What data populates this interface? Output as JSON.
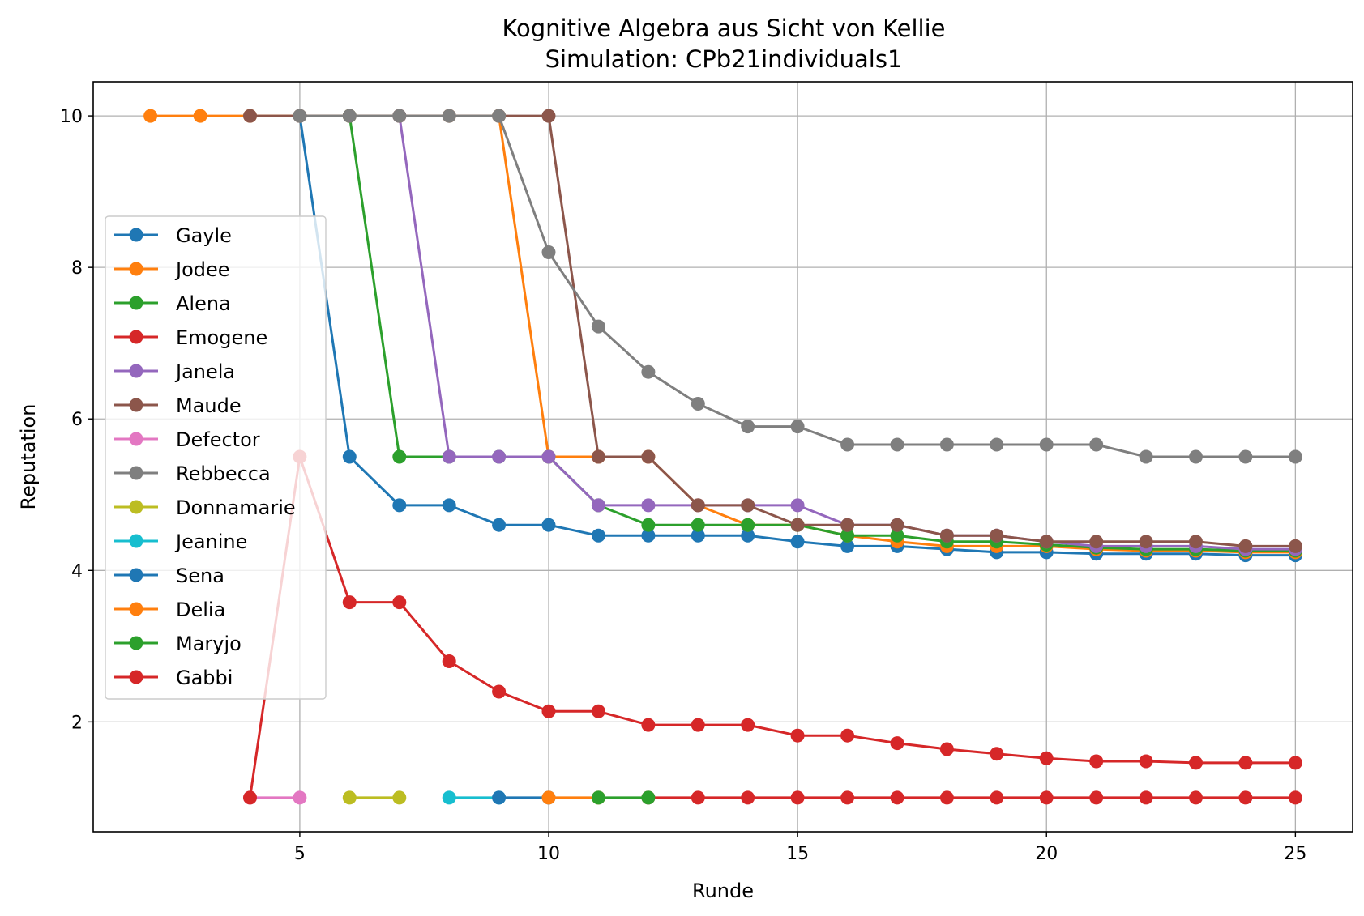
{
  "chart_data": {
    "type": "line",
    "title": "Kognitive Algebra aus Sicht von Kellie",
    "subtitle": "Simulation: CPb21individuals1",
    "xlabel": "Runde",
    "ylabel": "Reputation",
    "xlim": [
      0.85,
      26.15
    ],
    "ylim": [
      0.55,
      10.45
    ],
    "xticks": [
      5,
      10,
      15,
      20,
      25
    ],
    "yticks": [
      2,
      4,
      6,
      8,
      10
    ],
    "grid": true,
    "legend_position": "center-left",
    "series": [
      {
        "name": "Gayle",
        "color": "#1f77b4",
        "points": [
          [
            5,
            10
          ],
          [
            6,
            5.5
          ],
          [
            7,
            4.86
          ],
          [
            8,
            4.86
          ],
          [
            9,
            4.6
          ],
          [
            10,
            4.6
          ],
          [
            11,
            4.46
          ],
          [
            12,
            4.46
          ],
          [
            13,
            4.46
          ],
          [
            14,
            4.46
          ],
          [
            15,
            4.38
          ],
          [
            16,
            4.32
          ],
          [
            17,
            4.32
          ],
          [
            18,
            4.28
          ],
          [
            19,
            4.24
          ],
          [
            20,
            4.24
          ],
          [
            21,
            4.22
          ],
          [
            22,
            4.22
          ],
          [
            23,
            4.22
          ],
          [
            24,
            4.2
          ],
          [
            25,
            4.2
          ]
        ]
      },
      {
        "name": "Jodee",
        "color": "#ff7f0e",
        "points": [
          [
            2,
            10
          ],
          [
            3,
            10
          ],
          [
            4,
            10
          ],
          [
            5,
            10
          ],
          [
            6,
            10
          ],
          [
            7,
            10
          ],
          [
            8,
            10
          ],
          [
            9,
            10
          ],
          [
            10,
            5.5
          ],
          [
            11,
            5.5
          ],
          [
            12,
            5.5
          ],
          [
            13,
            4.86
          ],
          [
            14,
            4.6
          ],
          [
            15,
            4.6
          ],
          [
            16,
            4.46
          ],
          [
            17,
            4.38
          ],
          [
            18,
            4.32
          ],
          [
            19,
            4.32
          ],
          [
            20,
            4.32
          ],
          [
            21,
            4.28
          ],
          [
            22,
            4.26
          ],
          [
            23,
            4.26
          ],
          [
            24,
            4.24
          ],
          [
            25,
            4.24
          ]
        ]
      },
      {
        "name": "Alena",
        "color": "#2ca02c",
        "points": [
          [
            6,
            10
          ],
          [
            7,
            5.5
          ],
          [
            8,
            5.5
          ],
          [
            9,
            5.5
          ],
          [
            10,
            5.5
          ],
          [
            11,
            4.86
          ],
          [
            12,
            4.6
          ],
          [
            13,
            4.6
          ],
          [
            14,
            4.6
          ],
          [
            15,
            4.6
          ],
          [
            16,
            4.46
          ],
          [
            17,
            4.46
          ],
          [
            18,
            4.38
          ],
          [
            19,
            4.38
          ],
          [
            20,
            4.34
          ],
          [
            21,
            4.3
          ],
          [
            22,
            4.28
          ],
          [
            23,
            4.28
          ],
          [
            24,
            4.26
          ],
          [
            25,
            4.26
          ]
        ]
      },
      {
        "name": "Emogene",
        "color": "#d62728",
        "points": [
          [
            12,
            1
          ],
          [
            13,
            1
          ],
          [
            14,
            1
          ],
          [
            15,
            1
          ],
          [
            16,
            1
          ],
          [
            17,
            1
          ],
          [
            18,
            1
          ],
          [
            19,
            1
          ],
          [
            20,
            1
          ],
          [
            21,
            1
          ],
          [
            22,
            1
          ],
          [
            23,
            1
          ],
          [
            24,
            1
          ],
          [
            25,
            1
          ]
        ]
      },
      {
        "name": "Janela",
        "color": "#9467bd",
        "points": [
          [
            7,
            10
          ],
          [
            8,
            5.5
          ],
          [
            9,
            5.5
          ],
          [
            10,
            5.5
          ],
          [
            11,
            4.86
          ],
          [
            12,
            4.86
          ],
          [
            13,
            4.86
          ],
          [
            14,
            4.86
          ],
          [
            15,
            4.86
          ],
          [
            16,
            4.6
          ],
          [
            17,
            4.6
          ],
          [
            18,
            4.46
          ],
          [
            19,
            4.46
          ],
          [
            20,
            4.38
          ],
          [
            21,
            4.32
          ],
          [
            22,
            4.32
          ],
          [
            23,
            4.32
          ],
          [
            24,
            4.28
          ],
          [
            25,
            4.28
          ]
        ]
      },
      {
        "name": "Maude",
        "color": "#8c564b",
        "points": [
          [
            4,
            10
          ],
          [
            5,
            10
          ],
          [
            6,
            10
          ],
          [
            7,
            10
          ],
          [
            8,
            10
          ],
          [
            9,
            10
          ],
          [
            10,
            10
          ],
          [
            11,
            5.5
          ],
          [
            12,
            5.5
          ],
          [
            13,
            4.86
          ],
          [
            14,
            4.86
          ],
          [
            15,
            4.6
          ],
          [
            16,
            4.6
          ],
          [
            17,
            4.6
          ],
          [
            18,
            4.46
          ],
          [
            19,
            4.46
          ],
          [
            20,
            4.38
          ],
          [
            21,
            4.38
          ],
          [
            22,
            4.38
          ],
          [
            23,
            4.38
          ],
          [
            24,
            4.32
          ],
          [
            25,
            4.32
          ]
        ]
      },
      {
        "name": "Defector",
        "color": "#e377c2",
        "points": [
          [
            4,
            1
          ],
          [
            5,
            1
          ]
        ]
      },
      {
        "name": "Rebbecca",
        "color": "#7f7f7f",
        "points": [
          [
            5,
            10
          ],
          [
            6,
            10
          ],
          [
            7,
            10
          ],
          [
            8,
            10
          ],
          [
            9,
            10
          ],
          [
            10,
            8.2
          ],
          [
            11,
            7.22
          ],
          [
            12,
            6.62
          ],
          [
            13,
            6.2
          ],
          [
            14,
            5.9
          ],
          [
            15,
            5.9
          ],
          [
            16,
            5.66
          ],
          [
            17,
            5.66
          ],
          [
            18,
            5.66
          ],
          [
            19,
            5.66
          ],
          [
            20,
            5.66
          ],
          [
            21,
            5.66
          ],
          [
            22,
            5.5
          ],
          [
            23,
            5.5
          ],
          [
            24,
            5.5
          ],
          [
            25,
            5.5
          ]
        ]
      },
      {
        "name": "Donnamarie",
        "color": "#bcbd22",
        "points": [
          [
            6,
            1
          ],
          [
            7,
            1
          ]
        ]
      },
      {
        "name": "Jeanine",
        "color": "#17becf",
        "points": [
          [
            8,
            1
          ],
          [
            9,
            1
          ]
        ]
      },
      {
        "name": "Sena",
        "color": "#1f77b4",
        "points": [
          [
            9,
            1
          ],
          [
            10,
            1
          ]
        ]
      },
      {
        "name": "Delia",
        "color": "#ff7f0e",
        "points": [
          [
            10,
            1
          ],
          [
            11,
            1
          ]
        ]
      },
      {
        "name": "Maryjo",
        "color": "#2ca02c",
        "points": [
          [
            11,
            1
          ],
          [
            12,
            1
          ]
        ]
      },
      {
        "name": "Gabbi",
        "color": "#d62728",
        "points": [
          [
            4,
            1
          ],
          [
            5,
            5.5
          ],
          [
            6,
            3.58
          ],
          [
            7,
            3.58
          ],
          [
            8,
            2.8
          ],
          [
            9,
            2.4
          ],
          [
            10,
            2.14
          ],
          [
            11,
            2.14
          ],
          [
            12,
            1.96
          ],
          [
            13,
            1.96
          ],
          [
            14,
            1.96
          ],
          [
            15,
            1.82
          ],
          [
            16,
            1.82
          ],
          [
            17,
            1.72
          ],
          [
            18,
            1.64
          ],
          [
            19,
            1.58
          ],
          [
            20,
            1.52
          ],
          [
            21,
            1.48
          ],
          [
            22,
            1.48
          ],
          [
            23,
            1.46
          ],
          [
            24,
            1.46
          ],
          [
            25,
            1.46
          ]
        ]
      }
    ]
  }
}
